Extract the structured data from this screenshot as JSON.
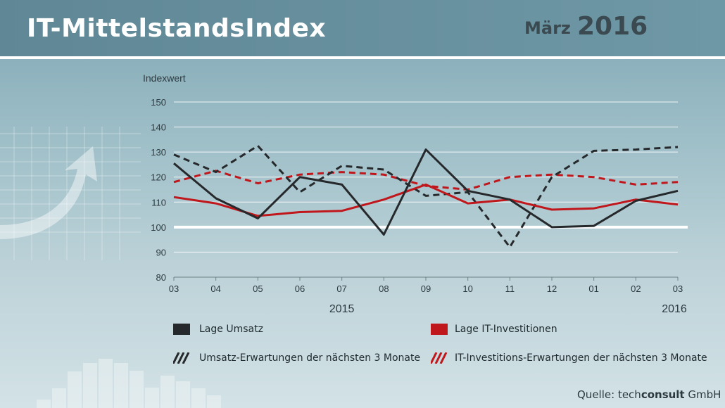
{
  "header": {
    "title": "IT-MittelstandsIndex",
    "month": "März",
    "year": "2016"
  },
  "source": {
    "prefix": "Quelle: ",
    "brand_light": "tech",
    "brand_bold": "consult",
    "suffix": " GmbH"
  },
  "colors": {
    "black_series": "#26292b",
    "red_series": "#c0171c",
    "baseline": "#ffffff"
  },
  "chart_data": {
    "type": "line",
    "ylabel": "Indexwert",
    "ylim": [
      80,
      150
    ],
    "yticks": [
      80,
      90,
      100,
      110,
      120,
      130,
      140,
      150
    ],
    "grid": true,
    "baseline": 100,
    "categories": [
      "03",
      "04",
      "05",
      "06",
      "07",
      "08",
      "09",
      "10",
      "11",
      "12",
      "01",
      "02",
      "03"
    ],
    "year_labels": [
      {
        "label": "2015",
        "at": "07"
      },
      {
        "label": "2016",
        "at": "03"
      }
    ],
    "series": [
      {
        "name": "Lage Umsatz",
        "color": "#26292b",
        "style": "solid",
        "values": [
          125.5,
          111.5,
          103.5,
          120,
          117,
          97,
          131,
          114.5,
          111,
          100,
          100.5,
          110.5,
          114.5
        ]
      },
      {
        "name": "Lage IT-Investitionen",
        "color": "#c0171c",
        "style": "solid",
        "values": [
          112,
          109.5,
          104.5,
          106,
          106.5,
          111,
          117,
          109.5,
          111,
          107,
          107.5,
          111,
          109
        ]
      },
      {
        "name": "Umsatz-Erwartungen der nächsten 3 Monate",
        "color": "#26292b",
        "style": "dashed",
        "values": [
          129,
          122,
          132.5,
          114,
          124.5,
          123,
          112.5,
          114,
          92,
          120,
          130.5,
          131,
          132
        ]
      },
      {
        "name": "IT-Investitions-Erwartungen der nächsten 3 Monate",
        "color": "#c0171c",
        "style": "dashed",
        "values": [
          118,
          122.5,
          117.5,
          121,
          122,
          121,
          116.5,
          115,
          120,
          121,
          120,
          117,
          118
        ]
      }
    ]
  }
}
